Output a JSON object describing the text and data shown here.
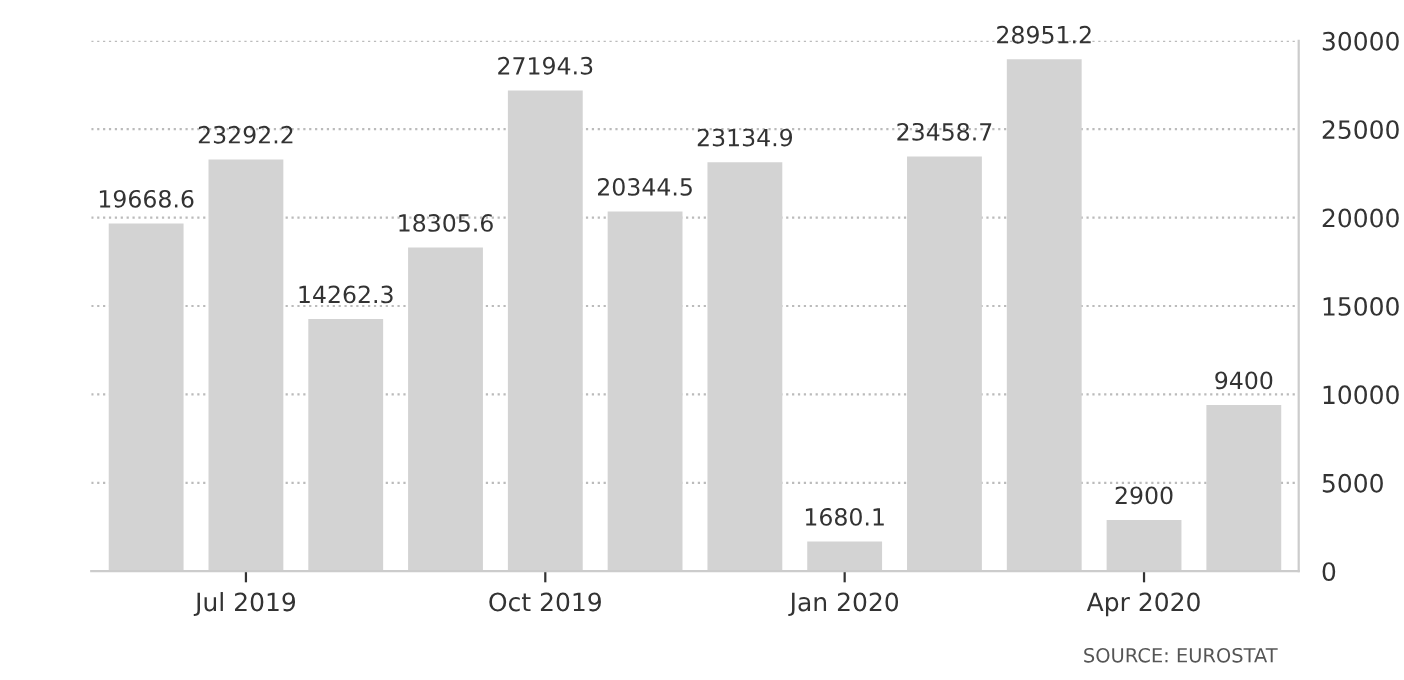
{
  "chart_data": {
    "type": "bar",
    "categories": [
      null,
      "Jul 2019",
      null,
      null,
      "Oct 2019",
      null,
      null,
      "Jan 2020",
      null,
      null,
      "Apr 2020",
      null
    ],
    "values": [
      19668.6,
      23292.2,
      14262.3,
      18305.6,
      27194.3,
      20344.5,
      23134.9,
      1680.1,
      23458.7,
      28951.2,
      2900,
      9400
    ],
    "color": "#d3d3d3",
    "ylim": [
      0,
      30000
    ],
    "yticks": [
      0,
      5000,
      10000,
      15000,
      20000,
      25000,
      30000
    ],
    "grid": "y",
    "data_labels": true,
    "annotations": [
      "SOURCE: EUROSTAT"
    ]
  }
}
